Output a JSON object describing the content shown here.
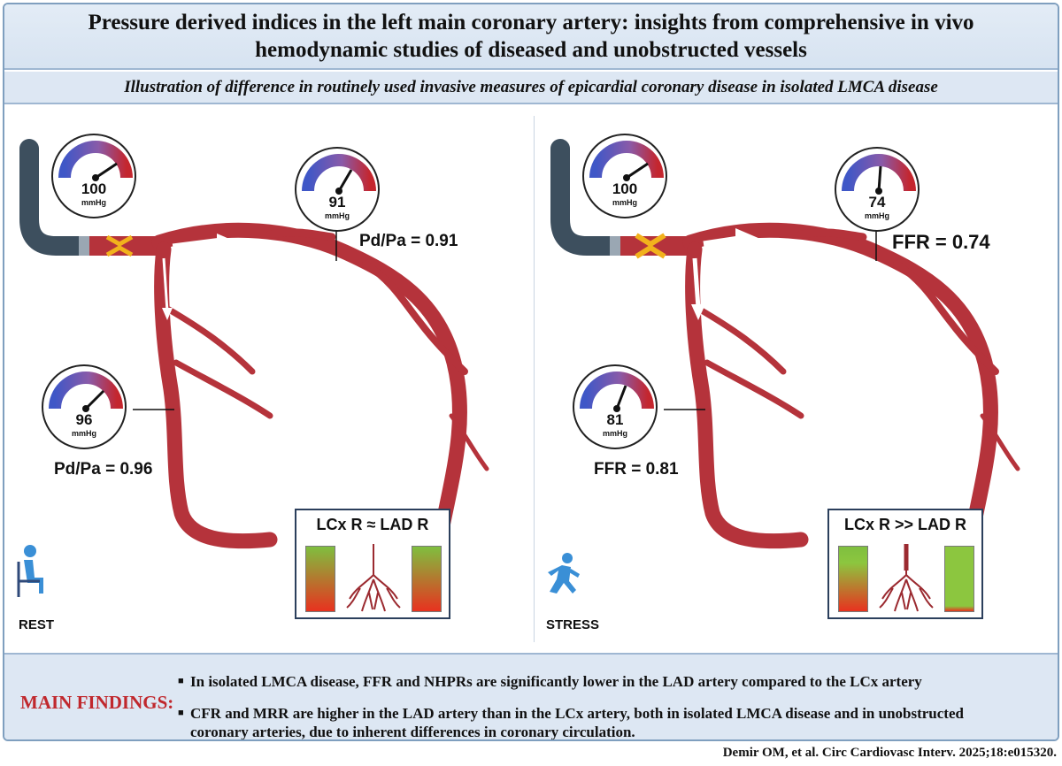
{
  "header": {
    "title_line1": "Pressure derived indices in the left main coronary artery: insights from comprehensive in vivo",
    "title_line2": "hemodynamic studies of diseased and unobstructed vessels",
    "subtitle": "Illustration of difference in routinely used invasive measures of epicardial coronary disease in isolated LMCA disease"
  },
  "panels": {
    "rest": {
      "state_label": "REST",
      "gauge_aortic": {
        "value": "100",
        "unit": "mmHg"
      },
      "gauge_lad": {
        "value": "91",
        "unit": "mmHg"
      },
      "gauge_lcx": {
        "value": "96",
        "unit": "mmHg"
      },
      "lad_index": "Pd/Pa = 0.91",
      "lcx_index": "Pd/Pa = 0.96",
      "resistance_title": "LCx R ≈ LAD R",
      "person_icon": "sitting-person-icon"
    },
    "stress": {
      "state_label": "STRESS",
      "gauge_aortic": {
        "value": "100",
        "unit": "mmHg"
      },
      "gauge_lad": {
        "value": "74",
        "unit": "mmHg"
      },
      "gauge_lcx": {
        "value": "81",
        "unit": "mmHg"
      },
      "lad_index": "FFR = 0.74",
      "lcx_index": "FFR = 0.81",
      "resistance_title": "LCx R >> LAD R",
      "person_icon": "running-person-icon"
    }
  },
  "findings": {
    "label": "MAIN FINDINGS:",
    "items": [
      "In isolated LMCA disease, FFR and NHPRs are significantly lower in the LAD artery compared to the LCx artery",
      "CFR and MRR are higher in the LAD artery than in the LCx artery, both in isolated LMCA disease and in unobstructed coronary arteries, due to inherent differences in coronary circulation."
    ]
  },
  "citation": "Demir OM, et al. Circ Cardiovasc Interv. 2025;18:e015320.",
  "colors": {
    "vessel": "#b5333b",
    "vessel_dark": "#7e1d25",
    "catheter": "#3d4f5e",
    "stenosis": "#f2b21c",
    "band_background": "#dde7f3",
    "findings_label": "#c0282d",
    "bar_green": "#8cc63f",
    "bar_red": "#e53226"
  }
}
